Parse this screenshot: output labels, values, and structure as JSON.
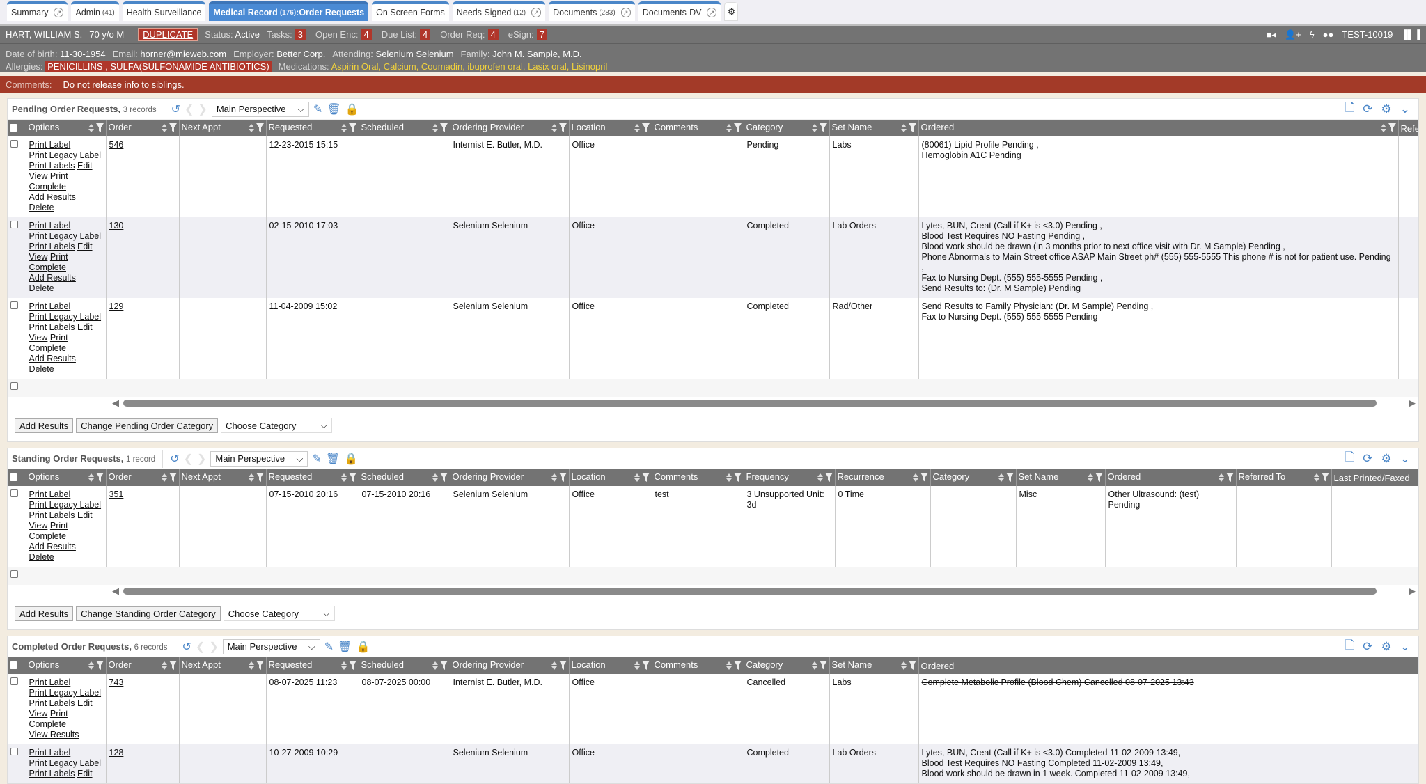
{
  "tabs": [
    {
      "label": "Summary",
      "count": "",
      "popout": true,
      "active": false
    },
    {
      "label": "Admin",
      "count": "(41)",
      "popout": false,
      "active": false
    },
    {
      "label": "Health Surveillance",
      "count": "",
      "popout": false,
      "active": false
    },
    {
      "label": "Medical Record",
      "count": "(176)",
      "suffix": ":Order Requests",
      "popout": false,
      "active": true
    },
    {
      "label": "On Screen Forms",
      "count": "",
      "popout": false,
      "active": false
    },
    {
      "label": "Needs Signed",
      "count": "(12)",
      "popout": true,
      "active": false
    },
    {
      "label": "Documents",
      "count": "(283)",
      "popout": true,
      "active": false
    },
    {
      "label": "Documents-DV",
      "count": "",
      "popout": true,
      "active": false
    }
  ],
  "patient": {
    "name": "HART, WILLIAM S.",
    "age_sex": "70 y/o M",
    "duplicate": "DUPLICATE",
    "status_label": "Status:",
    "status": "Active",
    "counters": [
      {
        "label": "Tasks:",
        "value": "3"
      },
      {
        "label": "Open Enc:",
        "value": "4"
      },
      {
        "label": "Due List:",
        "value": "4"
      },
      {
        "label": "Order Req:",
        "value": "4"
      },
      {
        "label": "eSign:",
        "value": "7"
      }
    ],
    "dob_label": "Date of birth:",
    "dob": "11-30-1954",
    "email_label": "Email:",
    "email": "horner@mieweb.com",
    "employer_label": "Employer:",
    "employer": "Better Corp.",
    "attending_label": "Attending:",
    "attending": "Selenium Selenium",
    "family_label": "Family:",
    "family": "John M. Sample, M.D.",
    "allergies_label": "Allergies:",
    "allergies": "PENICILLINS , SULFA(SULFONAMIDE ANTIBIOTICS)",
    "medications_label": "Medications:",
    "medications": [
      "Aspirin Oral",
      "Calcium",
      "Coumadin",
      "ibuprofen oral",
      "Lasix oral",
      "Lisinopril"
    ],
    "account": "TEST-10019",
    "comments_label": "Comments:",
    "comments": "Do not release info to siblings."
  },
  "sections": [
    {
      "title": "Pending Order Requests,",
      "count": "3 records",
      "perspective": "Main Perspective",
      "columns": [
        "Options",
        "Order",
        "Next Appt",
        "Requested",
        "Scheduled",
        "Ordering Provider",
        "Location",
        "Comments",
        "Category",
        "Set Name",
        "Ordered",
        "Refe"
      ],
      "rows": [
        {
          "options": [
            [
              "Print Label"
            ],
            [
              "Print Legacy Label"
            ],
            [
              "Print Labels",
              "Edit"
            ],
            [
              "View",
              "Print"
            ],
            [
              "Complete"
            ],
            [
              "Add Results"
            ],
            [
              "Delete"
            ]
          ],
          "cells": [
            "546",
            "",
            "12-23-2015 15:15",
            "",
            "Internist E. Butler, M.D.",
            "Office",
            "",
            "Pending",
            "Labs",
            [
              "(80061) Lipid Profile Pending ,",
              "Hemoglobin A1C Pending"
            ],
            ""
          ]
        },
        {
          "options": [
            [
              "Print Label"
            ],
            [
              "Print Legacy Label"
            ],
            [
              "Print Labels",
              "Edit"
            ],
            [
              "View",
              "Print"
            ],
            [
              "Complete"
            ],
            [
              "Add Results"
            ],
            [
              "Delete"
            ]
          ],
          "cells": [
            "130",
            "",
            "02-15-2010 17:03",
            "",
            "Selenium Selenium",
            "Office",
            "",
            "Completed",
            "Lab Orders",
            [
              "Lytes, BUN, Creat (Call if K+ is <3.0) Pending ,",
              "Blood Test Requires NO Fasting Pending ,",
              "Blood work should be drawn (in 3 months prior to next office visit with Dr. M Sample) Pending ,",
              "Phone Abnormals to Main Street office ASAP Main Street ph# (555) 555-5555 This phone # is not for patient use. Pending ,",
              "Fax to Nursing Dept. (555) 555-5555 Pending ,",
              "Send Results to: (Dr. M Sample) Pending"
            ],
            ""
          ]
        },
        {
          "options": [
            [
              "Print Label"
            ],
            [
              "Print Legacy Label"
            ],
            [
              "Print Labels",
              "Edit"
            ],
            [
              "View",
              "Print"
            ],
            [
              "Complete"
            ],
            [
              "Add Results"
            ],
            [
              "Delete"
            ]
          ],
          "cells": [
            "129",
            "",
            "11-04-2009 15:02",
            "",
            "Selenium Selenium",
            "Office",
            "",
            "Completed",
            "Rad/Other",
            [
              "Send Results to Family Physician: (Dr. M Sample) Pending ,",
              "Fax to Nursing Dept. (555) 555-5555 Pending"
            ],
            ""
          ]
        }
      ],
      "buttons": [
        "Add Results",
        "Change Pending Order Category"
      ],
      "category_select": "Choose Category"
    },
    {
      "title": "Standing Order Requests,",
      "count": "1 record",
      "perspective": "Main Perspective",
      "columns": [
        "Options",
        "Order",
        "Next Appt",
        "Requested",
        "Scheduled",
        "Ordering Provider",
        "Location",
        "Comments",
        "Frequency",
        "Recurrence",
        "Category",
        "Set Name",
        "Ordered",
        "Referred To",
        "Last Printed/Faxed"
      ],
      "rows": [
        {
          "options": [
            [
              "Print Label"
            ],
            [
              "Print Legacy Label"
            ],
            [
              "Print Labels",
              "Edit"
            ],
            [
              "View",
              "Print"
            ],
            [
              "Complete"
            ],
            [
              "Add Results"
            ],
            [
              "Delete"
            ]
          ],
          "cells": [
            "351",
            "",
            "07-15-2010 20:16",
            "07-15-2010 20:16",
            "Selenium Selenium",
            "Office",
            "test",
            "3 Unsupported Unit: 3d",
            "0 Time",
            "",
            "Misc",
            [
              "Other Ultrasound: (test) Pending"
            ],
            "",
            ""
          ]
        }
      ],
      "buttons": [
        "Add Results",
        "Change Standing Order Category"
      ],
      "category_select": "Choose Category"
    },
    {
      "title": "Completed Order Requests,",
      "count": "6 records",
      "perspective": "Main Perspective",
      "columns": [
        "Options",
        "Order",
        "Next Appt",
        "Requested",
        "Scheduled",
        "Ordering Provider",
        "Location",
        "Comments",
        "Category",
        "Set Name",
        "Ordered"
      ],
      "rows": [
        {
          "options": [
            [
              "Print Label"
            ],
            [
              "Print Legacy Label"
            ],
            [
              "Print Labels",
              "Edit"
            ],
            [
              "View",
              "Print"
            ],
            [
              "Complete"
            ],
            [
              "View Results"
            ]
          ],
          "cells": [
            "743",
            "",
            "08-07-2025 11:23",
            "08-07-2025 00:00",
            "Internist E. Butler, M.D.",
            "Office",
            "",
            "Cancelled",
            "Labs",
            [
              "Complete Metabolic Profile (Blood Chem) Cancelled 08-07-2025 13:43"
            ]
          ],
          "strike_ordered": true
        },
        {
          "options": [
            [
              "Print Label"
            ],
            [
              "Print Legacy Label"
            ],
            [
              "Print Labels",
              "Edit"
            ]
          ],
          "cells": [
            "128",
            "",
            "10-27-2009 10:29",
            "",
            "Selenium Selenium",
            "Office",
            "",
            "Completed",
            "Lab Orders",
            [
              "Lytes, BUN, Creat (Call if K+ is <3.0) Completed 11-02-2009 13:49,",
              "Blood Test Requires NO Fasting Completed 11-02-2009 13:49,",
              "Blood work should be drawn in 1 week. Completed 11-02-2009 13:49,"
            ]
          ]
        }
      ]
    }
  ]
}
